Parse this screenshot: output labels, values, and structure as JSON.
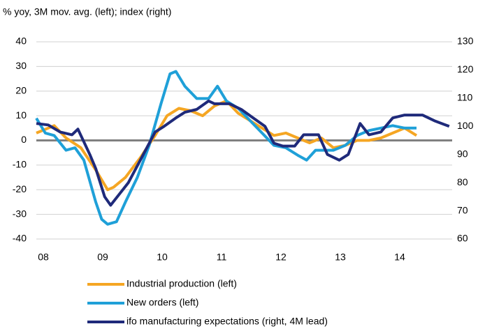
{
  "chart_data": {
    "type": "line",
    "subtitle": "% yoy, 3M mov. avg. (left); index (right)",
    "xlim": [
      2008,
      2015
    ],
    "xticks": [
      {
        "value": 2008,
        "label": "08"
      },
      {
        "value": 2009,
        "label": "09"
      },
      {
        "value": 2010,
        "label": "10"
      },
      {
        "value": 2011,
        "label": "11"
      },
      {
        "value": 2012,
        "label": "12"
      },
      {
        "value": 2013,
        "label": "13"
      },
      {
        "value": 2014,
        "label": "14"
      }
    ],
    "ylim": [
      -40,
      40
    ],
    "yticks": [
      -40,
      -30,
      -20,
      -10,
      0,
      10,
      20,
      30,
      40
    ],
    "y2lim": [
      60,
      130
    ],
    "y2ticks": [
      60,
      70,
      80,
      90,
      100,
      110,
      120,
      130
    ],
    "grid": true,
    "series": [
      {
        "name": "Industrial production (left)",
        "color": "#f5a623",
        "x": [
          2008,
          2008.3,
          2008.5,
          2008.75,
          2009.0,
          2009.2,
          2009.3,
          2009.5,
          2009.75,
          2010.0,
          2010.2,
          2010.4,
          2010.6,
          2010.8,
          2011.0,
          2011.2,
          2011.4,
          2011.6,
          2011.8,
          2012.0,
          2012.2,
          2012.4,
          2012.6,
          2012.8,
          2013.0,
          2013.2,
          2013.4,
          2013.6,
          2013.8,
          2014.0,
          2014.2,
          2014.4
        ],
        "values": [
          3,
          6,
          1,
          -3,
          -12,
          -20,
          -19,
          -15,
          -7,
          2,
          10,
          13,
          12,
          10,
          14,
          16,
          11,
          8,
          5,
          2,
          3,
          1,
          -1,
          1,
          -3,
          -2,
          0,
          0,
          1,
          3,
          5,
          2
        ]
      },
      {
        "name": "New orders (left)",
        "color": "#1fa0d8",
        "x": [
          2008,
          2008.15,
          2008.3,
          2008.5,
          2008.65,
          2008.8,
          2009.0,
          2009.1,
          2009.2,
          2009.35,
          2009.5,
          2009.7,
          2009.9,
          2010.1,
          2010.25,
          2010.35,
          2010.5,
          2010.7,
          2010.9,
          2011.05,
          2011.2,
          2011.4,
          2011.6,
          2011.8,
          2012.0,
          2012.2,
          2012.4,
          2012.55,
          2012.7,
          2012.85,
          2013.0,
          2013.2,
          2013.4,
          2013.6,
          2013.8,
          2014.0,
          2014.2,
          2014.4
        ],
        "values": [
          9,
          3,
          2,
          -4,
          -3,
          -8,
          -25,
          -32,
          -34,
          -33,
          -25,
          -15,
          -2,
          15,
          27,
          28,
          22,
          17,
          17,
          22,
          16,
          13,
          8,
          3,
          -2,
          -3,
          -6,
          -8,
          -4,
          -4,
          -4,
          -2,
          2,
          4,
          5,
          6,
          5,
          5
        ]
      },
      {
        "name": "ifo manufacturing expectations (right, 4M lead)",
        "color": "#1f2a7a",
        "axis": "y2",
        "x": [
          2008,
          2008.2,
          2008.4,
          2008.6,
          2008.7,
          2008.9,
          2009.0,
          2009.15,
          2009.25,
          2009.4,
          2009.55,
          2009.75,
          2010.0,
          2010.15,
          2010.35,
          2010.5,
          2010.7,
          2010.9,
          2011.0,
          2011.25,
          2011.45,
          2011.65,
          2011.85,
          2012.0,
          2012.15,
          2012.35,
          2012.5,
          2012.75,
          2012.9,
          2013.1,
          2013.25,
          2013.45,
          2013.6,
          2013.8,
          2014.0,
          2014.2,
          2014.5,
          2014.7,
          2014.95
        ],
        "values": [
          101,
          100.5,
          98,
          97,
          99,
          90,
          85,
          75,
          72,
          76,
          80,
          88,
          98,
          100,
          103,
          105,
          106,
          109,
          108,
          108,
          106,
          103,
          100,
          94,
          93,
          93,
          97,
          97,
          90,
          88,
          90,
          101,
          97,
          98,
          103,
          104,
          104,
          102,
          100
        ]
      }
    ]
  }
}
